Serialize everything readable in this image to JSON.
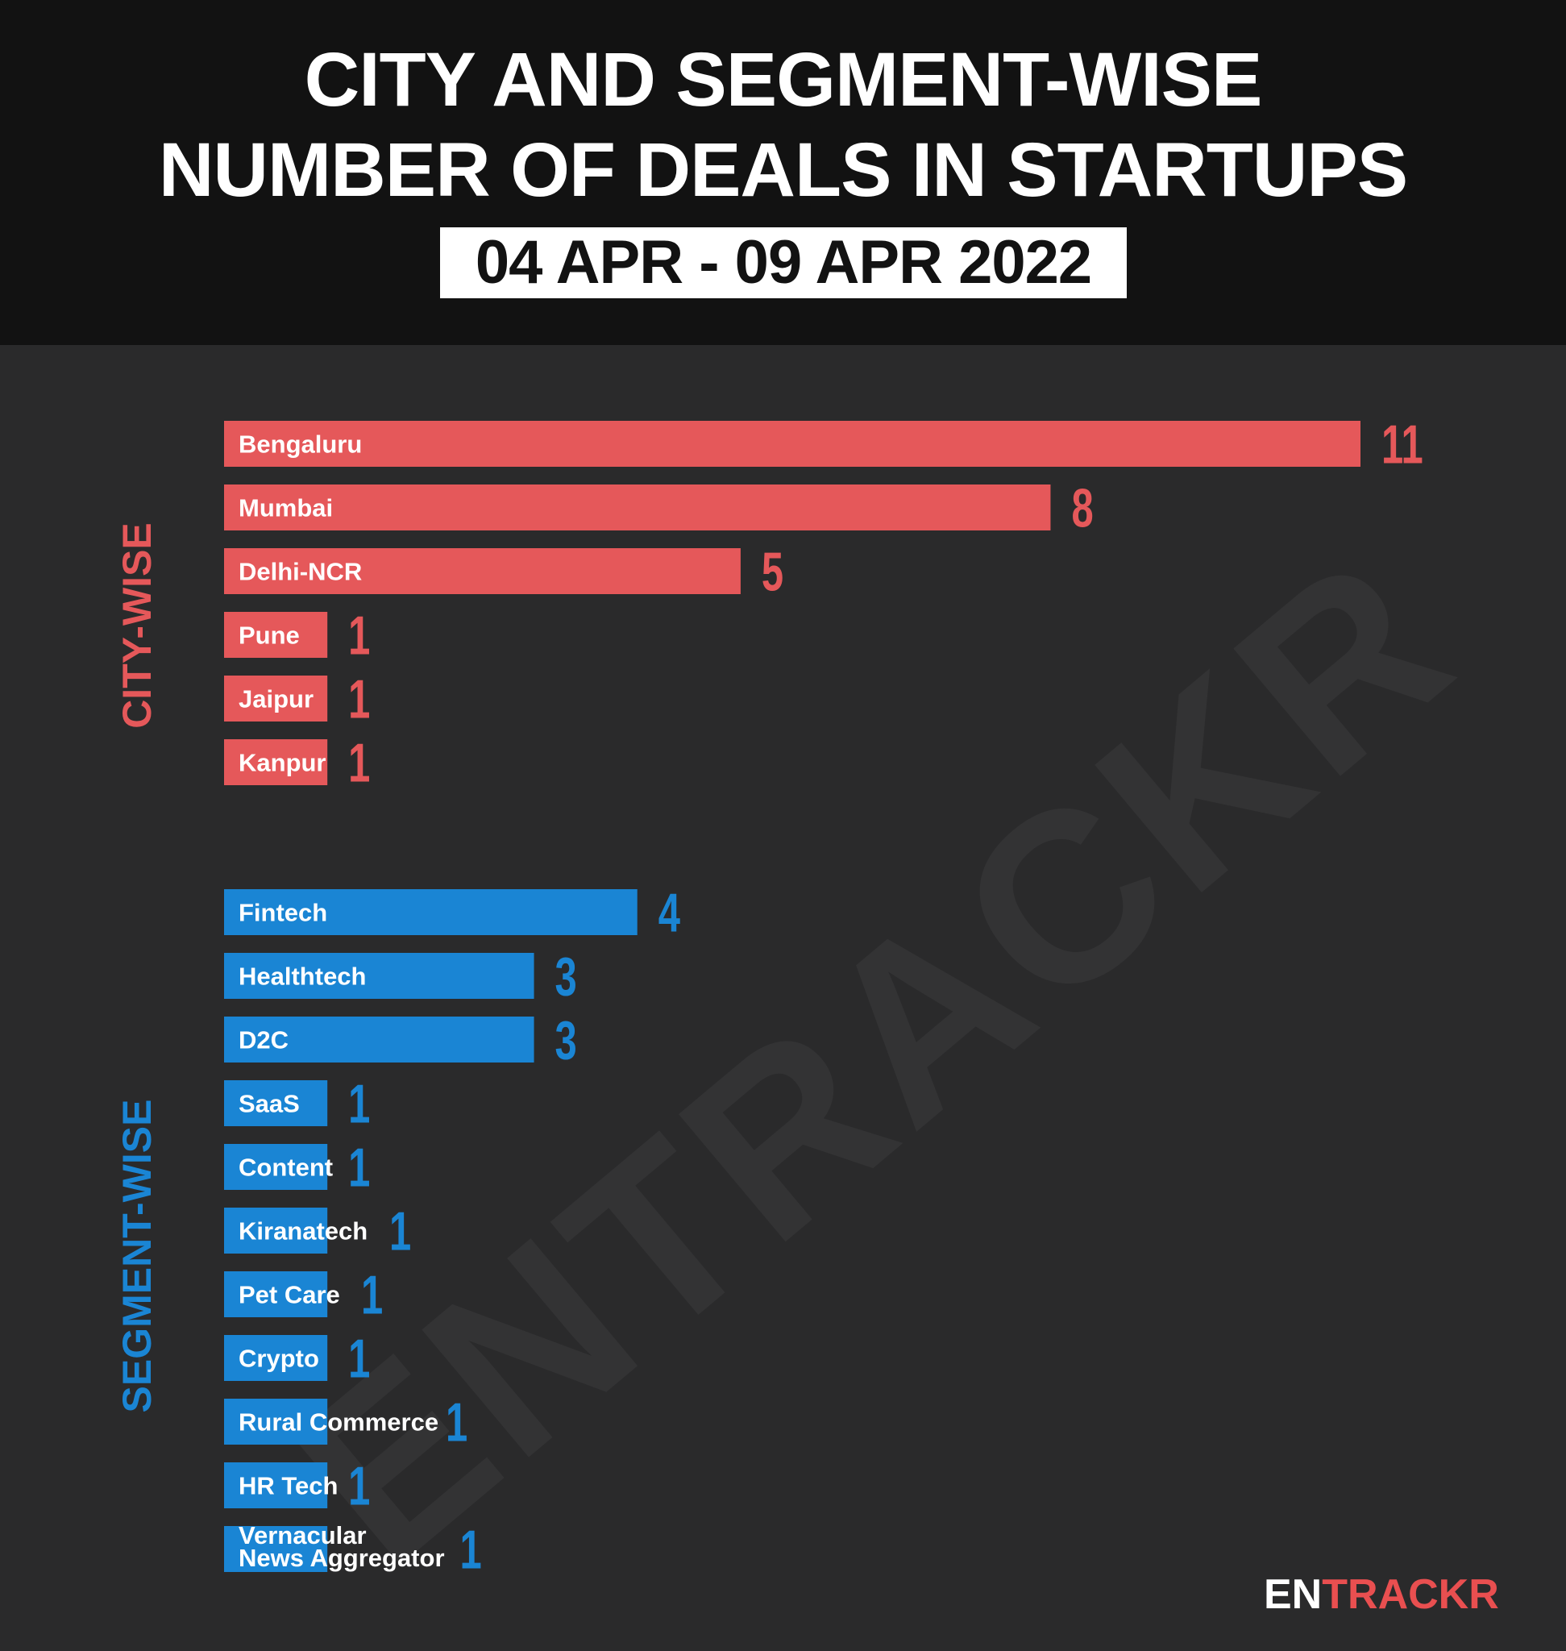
{
  "header": {
    "title_line1": "CITY AND SEGMENT-WISE",
    "title_line2": "NUMBER OF DEALS IN STARTUPS",
    "date_range": "04 APR - 09 APR 2022"
  },
  "watermark": "ENTRACKR",
  "logo": {
    "part1": "EN",
    "part2": "TRACKR"
  },
  "colors": {
    "city": "#e5585a",
    "segment": "#1a85d4",
    "header_bg": "#121212",
    "bg": "#2a2a2b"
  },
  "chart_data": [
    {
      "type": "bar",
      "orientation": "horizontal",
      "group_label": "CITY-WISE",
      "categories": [
        "Bengaluru",
        "Mumbai",
        "Delhi-NCR",
        "Pune",
        "Jaipur",
        "Kanpur"
      ],
      "values": [
        11,
        8,
        5,
        1,
        1,
        1
      ],
      "xlim": [
        0,
        11
      ]
    },
    {
      "type": "bar",
      "orientation": "horizontal",
      "group_label": "SEGMENT-WISE",
      "categories": [
        "Fintech",
        "Healthtech",
        "D2C",
        "SaaS",
        "Content",
        "Kiranatech",
        "Pet Care",
        "Crypto",
        "Rural Commerce",
        "HR Tech",
        "Vernacular News Aggregator"
      ],
      "values": [
        4,
        3,
        3,
        1,
        1,
        1,
        1,
        1,
        1,
        1,
        1
      ],
      "xlim": [
        0,
        11
      ]
    }
  ]
}
